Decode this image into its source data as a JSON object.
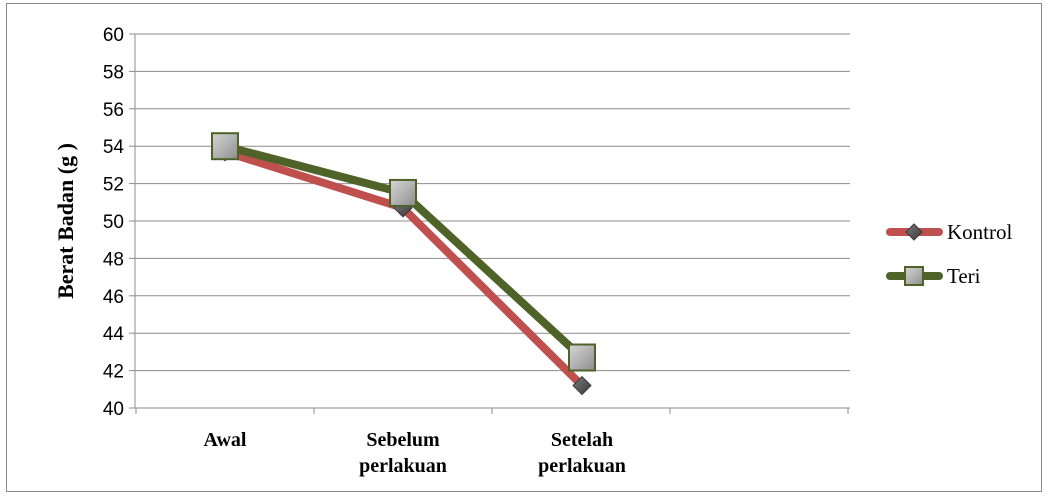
{
  "chart_data": {
    "type": "line",
    "title": "",
    "xlabel": "",
    "ylabel": "Berat  Badan (g )",
    "categories": [
      [
        "Awal"
      ],
      [
        "Sebelum",
        "perlakuan"
      ],
      [
        "Setelah",
        "perlakuan"
      ]
    ],
    "ylim": [
      40,
      60
    ],
    "yticks": [
      40,
      42,
      44,
      46,
      48,
      50,
      52,
      54,
      56,
      58,
      60
    ],
    "grid": true,
    "legend_position": "right",
    "series": [
      {
        "name": "Kontrol",
        "values": [
          53.7,
          50.7,
          41.2
        ],
        "color": "#c0504d",
        "marker": "diamond"
      },
      {
        "name": "Teri",
        "values": [
          54.0,
          51.5,
          42.7
        ],
        "color": "#4f6228",
        "marker": "square"
      }
    ]
  }
}
